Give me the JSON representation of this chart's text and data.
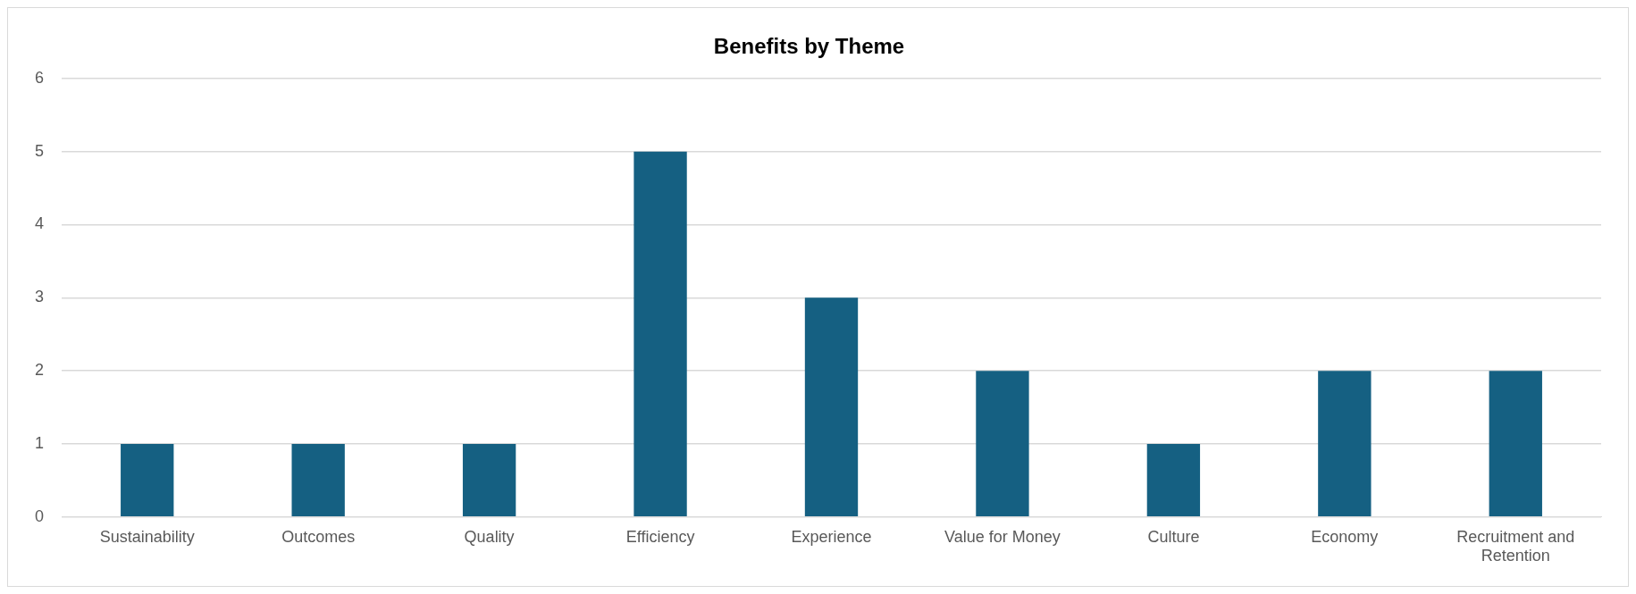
{
  "chart_data": {
    "type": "bar",
    "title": "Benefits by Theme",
    "categories": [
      "Sustainability",
      "Outcomes",
      "Quality",
      "Efficiency",
      "Experience",
      "Value for Money",
      "Culture",
      "Economy",
      "Recruitment and Retention"
    ],
    "values": [
      1,
      1,
      1,
      5,
      3,
      2,
      1,
      2,
      2
    ],
    "color": "#156082",
    "ylim": [
      0,
      6
    ],
    "yticks": [
      0,
      1,
      2,
      3,
      4,
      5,
      6
    ],
    "grid": "y",
    "legend": false
  }
}
